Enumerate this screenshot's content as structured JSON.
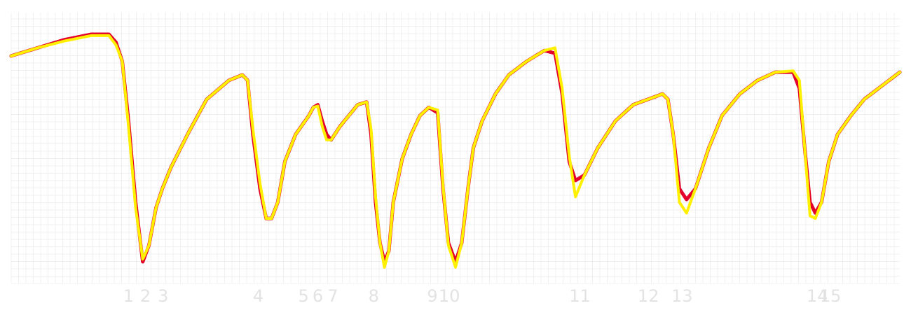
{
  "chart_data": {
    "type": "line",
    "title": "",
    "xlabel": "",
    "ylabel": "",
    "x_range": [
      0,
      100
    ],
    "y_range": [
      0,
      100
    ],
    "grid": true,
    "legend": "none",
    "series": [
      {
        "color": "#e3002b",
        "x": [
          0,
          3,
          6,
          9,
          11,
          11.8,
          12.5,
          13.2,
          14,
          14.8,
          15.5,
          16.3,
          17,
          18,
          20,
          22,
          24.5,
          26,
          26.6,
          27.2,
          28,
          28.7,
          29.3,
          30,
          30.8,
          32,
          33.5,
          34,
          34.5,
          35,
          35.5,
          36,
          37,
          38,
          39,
          40,
          40.5,
          41,
          41.5,
          42,
          42.5,
          43,
          44,
          45,
          46,
          47,
          48,
          48.6,
          49.2,
          50,
          50.7,
          51.4,
          52,
          53,
          54.5,
          56,
          58,
          60,
          61.2,
          62,
          62.8,
          63.5,
          64.5,
          66,
          68,
          70,
          72.5,
          73.3,
          73.9,
          74.5,
          75.2,
          76,
          77,
          78.5,
          80,
          82,
          84,
          86,
          88,
          88.7,
          89.3,
          89.9,
          90.5,
          91.2,
          92,
          93,
          94.5,
          96,
          98,
          100
        ],
        "y": [
          84,
          87,
          90,
          92,
          92,
          89,
          82,
          60,
          30,
          8,
          14,
          28,
          35,
          43,
          56,
          68,
          75,
          77,
          75,
          55,
          35,
          24,
          24,
          30,
          45,
          55,
          62,
          65,
          66,
          60,
          55,
          53,
          58,
          62,
          66,
          67,
          55,
          30,
          15,
          8,
          12,
          30,
          46,
          55,
          62,
          65,
          63,
          35,
          15,
          8,
          15,
          35,
          50,
          60,
          70,
          77,
          82,
          86,
          85,
          70,
          45,
          38,
          40,
          50,
          60,
          66,
          69,
          70,
          68,
          55,
          35,
          31,
          35,
          50,
          62,
          70,
          75,
          78,
          78,
          72,
          50,
          30,
          26,
          30,
          45,
          55,
          62,
          68,
          73,
          78
        ]
      },
      {
        "color": "#fff000",
        "x": [
          0,
          3,
          6,
          9,
          11,
          11.8,
          12.5,
          13.2,
          14,
          14.8,
          15.5,
          16.3,
          17,
          18,
          20,
          22,
          24.5,
          26,
          26.6,
          27.2,
          28,
          28.7,
          29.3,
          30,
          30.8,
          32,
          33.5,
          34,
          34.5,
          35,
          35.5,
          36,
          37,
          38,
          39,
          40,
          40.5,
          41,
          41.5,
          42,
          42.5,
          43,
          44,
          45,
          46,
          47,
          48,
          48.6,
          49.2,
          50,
          50.7,
          51.4,
          52,
          53,
          54.5,
          56,
          58,
          60,
          61.2,
          62,
          62.8,
          63.5,
          64.5,
          66,
          68,
          70,
          72.5,
          73.3,
          73.9,
          74.5,
          75.2,
          76,
          77,
          78.5,
          80,
          82,
          84,
          86,
          88,
          88.7,
          89.3,
          89.9,
          90.5,
          91.2,
          92,
          93,
          94.5,
          96,
          98,
          100
        ],
        "y": [
          84,
          87,
          89.5,
          91.5,
          91.5,
          88,
          82,
          58,
          28,
          9,
          14,
          28,
          35,
          43,
          56,
          68,
          75,
          77,
          75,
          57,
          37,
          24,
          24,
          30,
          45,
          55,
          62,
          65,
          65.5,
          58,
          53,
          53,
          58,
          62,
          66,
          67,
          57,
          32,
          15,
          6,
          12,
          30,
          46,
          55,
          62,
          65,
          64,
          36,
          14,
          6,
          15,
          35,
          50,
          60,
          70,
          77,
          82,
          86,
          87,
          72,
          47,
          32,
          40,
          50,
          60,
          66,
          69,
          70,
          68,
          55,
          30,
          26,
          35,
          50,
          62,
          70,
          75,
          78,
          78.5,
          75,
          50,
          25,
          24,
          30,
          45,
          55,
          62,
          68,
          73,
          78
        ]
      }
    ],
    "markers": [
      {
        "label": "1",
        "x": 13.2
      },
      {
        "label": "2",
        "x": 15.1
      },
      {
        "label": "3",
        "x": 17.1
      },
      {
        "label": "4",
        "x": 27.8
      },
      {
        "label": "5",
        "x": 32.9
      },
      {
        "label": "6",
        "x": 34.5
      },
      {
        "label": "7",
        "x": 36.2
      },
      {
        "label": "8",
        "x": 40.8
      },
      {
        "label": "9",
        "x": 47.4
      },
      {
        "label": "10",
        "x": 49.3
      },
      {
        "label": "11",
        "x": 64
      },
      {
        "label": "12",
        "x": 71.7
      },
      {
        "label": "13",
        "x": 75.5
      },
      {
        "label": "14",
        "x": 90.7
      },
      {
        "label": "15",
        "x": 92.2
      }
    ]
  }
}
